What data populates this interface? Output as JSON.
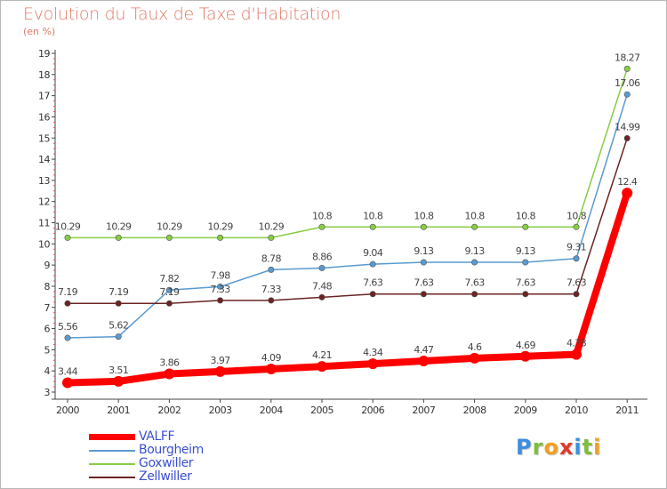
{
  "title": "Evolution du Taux de Taxe d'Habitation",
  "subtitle": "(en %)",
  "logo": {
    "text": "Proxiti",
    "letters": [
      {
        "ch": "P",
        "color": "#3d8ee0"
      },
      {
        "ch": "r",
        "color": "#7fbf3a"
      },
      {
        "ch": "o",
        "color": "#f0a020"
      },
      {
        "ch": "x",
        "color": "#e03a2a"
      },
      {
        "ch": "i",
        "color": "#3d8ee0"
      },
      {
        "ch": "t",
        "color": "#7fbf3a"
      },
      {
        "ch": "i",
        "color": "#f0a020"
      }
    ]
  },
  "chart_data": {
    "type": "line",
    "x": [
      "2000",
      "2001",
      "2002",
      "2003",
      "2004",
      "2005",
      "2006",
      "2007",
      "2008",
      "2009",
      "2010",
      "2011"
    ],
    "ylim": [
      3,
      19
    ],
    "yticks": [
      3,
      4,
      5,
      6,
      7,
      8,
      9,
      10,
      11,
      12,
      13,
      14,
      15,
      16,
      17,
      18,
      19
    ],
    "grid": false,
    "legend_position": "bottom-left",
    "series": [
      {
        "name": "Goxwiller",
        "color": "#88cc44",
        "values": [
          10.29,
          10.29,
          10.29,
          10.29,
          10.29,
          10.8,
          10.8,
          10.8,
          10.8,
          10.8,
          10.8,
          18.27
        ],
        "labels": [
          "10.29",
          "10.29",
          "10.29",
          "10.29",
          "10.29",
          "10.8",
          "10.8",
          "10.8",
          "10.8",
          "10.8",
          "10.8",
          "18.27"
        ]
      },
      {
        "name": "Bourgheim",
        "color": "#5a9ad0",
        "values": [
          5.56,
          5.62,
          7.82,
          7.98,
          8.78,
          8.86,
          9.04,
          9.13,
          9.13,
          9.13,
          9.31,
          17.06
        ],
        "labels": [
          "5.56",
          "5.62",
          "7.82",
          "7.98",
          "8.78",
          "8.86",
          "9.04",
          "9.13",
          "9.13",
          "9.13",
          "9.31",
          "17.06"
        ]
      },
      {
        "name": "Zellwiller",
        "color": "#6a2424",
        "values": [
          7.19,
          7.19,
          7.19,
          7.33,
          7.33,
          7.48,
          7.63,
          7.63,
          7.63,
          7.63,
          7.63,
          14.99
        ],
        "labels": [
          "7.19",
          "7.19",
          "7.19",
          "7.33",
          "7.33",
          "7.48",
          "7.63",
          "7.63",
          "7.63",
          "7.63",
          "7.63",
          "14.99"
        ]
      },
      {
        "name": "VALFF",
        "color": "#ff0000",
        "values": [
          3.44,
          3.51,
          3.86,
          3.97,
          4.09,
          4.21,
          4.34,
          4.47,
          4.6,
          4.69,
          4.78,
          12.4
        ],
        "labels": [
          "3.44",
          "3.51",
          "3.86",
          "3.97",
          "4.09",
          "4.21",
          "4.34",
          "4.47",
          "4.6",
          "4.69",
          "4.78",
          "12.4"
        ]
      }
    ]
  },
  "legend": [
    {
      "name": "VALFF",
      "color": "#ff0000",
      "thick": true
    },
    {
      "name": "Bourgheim",
      "color": "#5a9ad0",
      "thick": false
    },
    {
      "name": "Goxwiller",
      "color": "#88cc44",
      "thick": false
    },
    {
      "name": "Zellwiller",
      "color": "#6a2424",
      "thick": false
    }
  ]
}
